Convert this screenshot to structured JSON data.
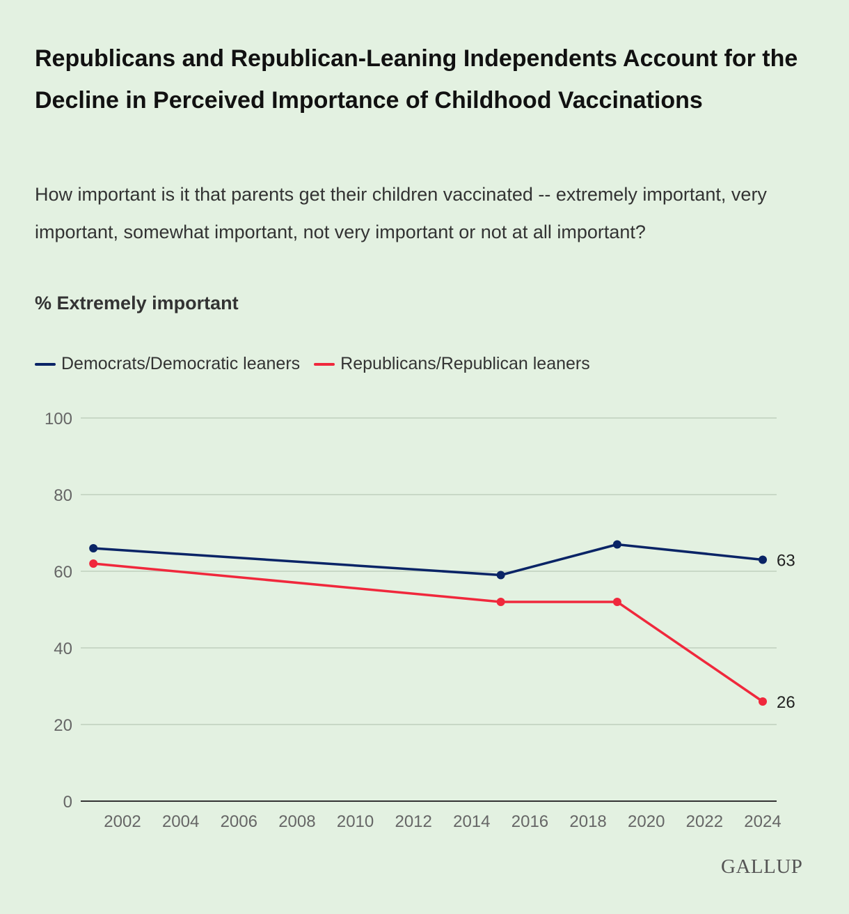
{
  "title": "Republicans and Republican-Leaning Independents Account for the Decline in Perceived Importance of Childhood Vaccinations",
  "subtitle": "How important is it that parents get their children vaccinated -- extremely important, very important, somewhat important, not very important or not at all important?",
  "measure_label": "% Extremely important",
  "logo": "GALLUP",
  "chart_data": {
    "type": "line",
    "title": "Republicans and Republican-Leaning Independents Account for the Decline in Perceived Importance of Childhood Vaccinations",
    "ylabel": "% Extremely important",
    "xlabel": "",
    "ylim": [
      0,
      100
    ],
    "xlim": [
      2001,
      2024
    ],
    "yticks": [
      "0",
      "20",
      "40",
      "60",
      "80",
      "100"
    ],
    "xticks": [
      "2002",
      "2004",
      "2006",
      "2008",
      "2010",
      "2012",
      "2014",
      "2016",
      "2018",
      "2020",
      "2022",
      "2024"
    ],
    "grid": true,
    "legend": "top-left",
    "series": [
      {
        "name": "Democrats/Democratic leaners",
        "color": "#0a2466",
        "x": [
          2001,
          2015,
          2019,
          2024
        ],
        "values": [
          66,
          59,
          67,
          63
        ],
        "end_label": "63"
      },
      {
        "name": "Republicans/Republican leaners",
        "color": "#f0283c",
        "x": [
          2001,
          2015,
          2019,
          2024
        ],
        "values": [
          62,
          52,
          52,
          26
        ],
        "end_label": "26"
      }
    ]
  }
}
